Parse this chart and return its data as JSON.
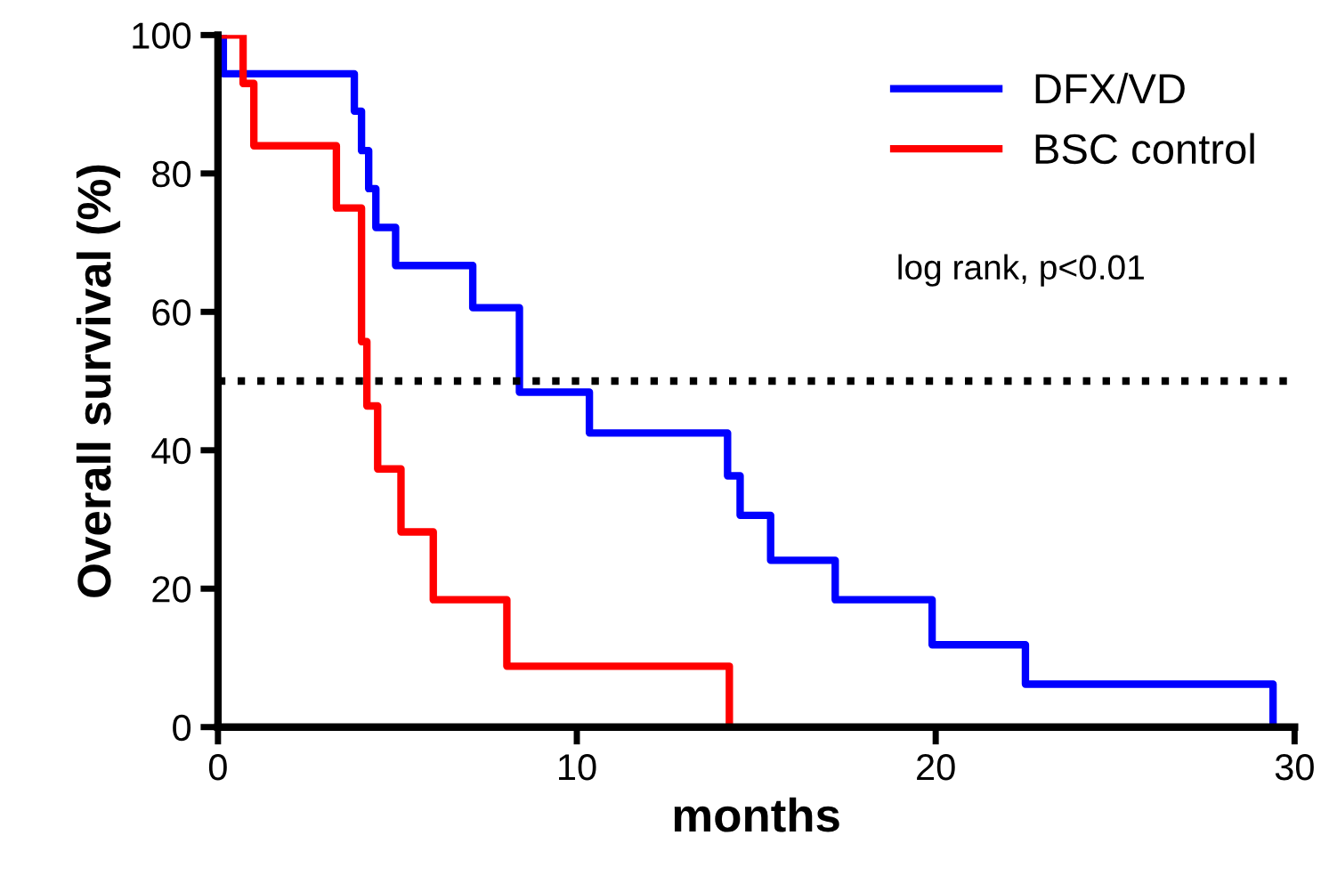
{
  "chart_data": {
    "type": "step",
    "xlabel": "months",
    "ylabel": "Overall survival (%)",
    "xlim": [
      0,
      30
    ],
    "ylim": [
      0,
      100
    ],
    "xticks": [
      0,
      10,
      20,
      30
    ],
    "yticks": [
      0,
      20,
      40,
      60,
      80,
      100
    ],
    "grid": false,
    "legend": "top right",
    "line_style": "solid",
    "marker": "none",
    "series": [
      {
        "name": "DFX/VD",
        "color": "#0000ff",
        "x": [
          0,
          0.15,
          3.8,
          4.0,
          4.2,
          4.4,
          4.95,
          7.1,
          8.4,
          10.35,
          14.2,
          14.55,
          15.4,
          17.2,
          19.9,
          22.5,
          29.4
        ],
        "values": [
          100,
          94.4,
          89,
          83.3,
          77.8,
          72.2,
          66.7,
          60.6,
          48.4,
          42.5,
          36.3,
          30.6,
          24.1,
          18.4,
          11.9,
          6.2,
          0
        ]
      },
      {
        "name": "BSC control",
        "color": "#ff0000",
        "x": [
          0,
          0.7,
          1.0,
          3.3,
          4.0,
          4.15,
          4.45,
          5.1,
          6.0,
          8.05,
          14.25
        ],
        "values": [
          100,
          93,
          84,
          75,
          55.7,
          46.4,
          37.3,
          28.2,
          18.4,
          8.8,
          0
        ]
      }
    ],
    "ref_lines": [
      {
        "axis": "y",
        "value": 50,
        "line_style": "dotted",
        "color": "#000000"
      }
    ],
    "annotations": [
      "log rank, p<0.01"
    ]
  }
}
